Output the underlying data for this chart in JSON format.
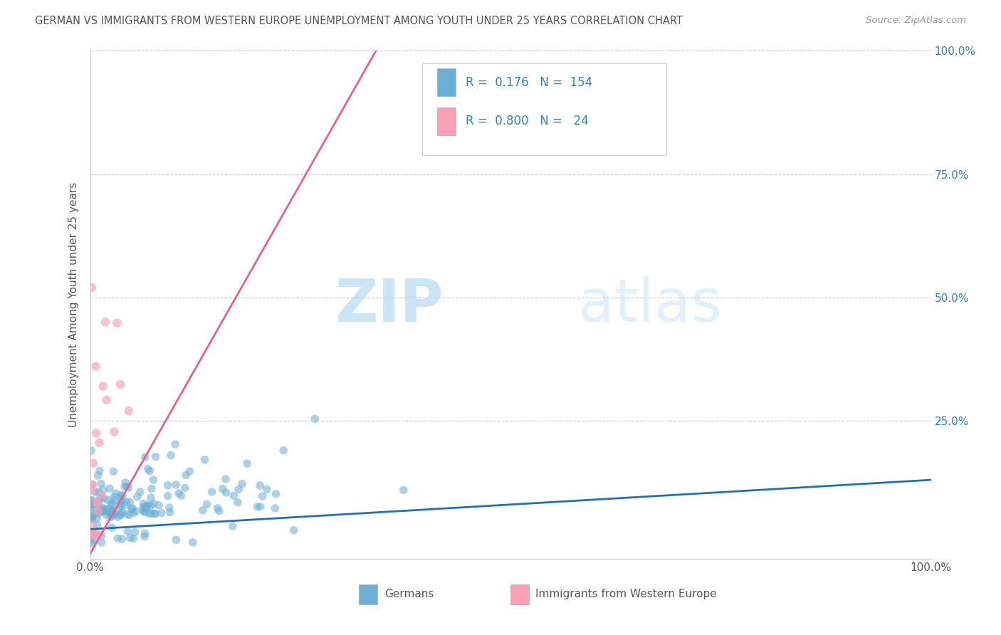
{
  "title": "GERMAN VS IMMIGRANTS FROM WESTERN EUROPE UNEMPLOYMENT AMONG YOUTH UNDER 25 YEARS CORRELATION CHART",
  "source": "Source: ZipAtlas.com",
  "ylabel": "Unemployment Among Youth under 25 years",
  "xlim": [
    0,
    1.0
  ],
  "ylim": [
    -0.03,
    1.0
  ],
  "german_color": "#6baed6",
  "immigrant_color": "#fa9fb5",
  "german_line_color": "#2171b5",
  "immigrant_line_color": "#e8628a",
  "german_R": 0.176,
  "german_N": 154,
  "immigrant_R": 0.8,
  "immigrant_N": 24,
  "watermark_zip": "ZIP",
  "watermark_atlas": "atlas",
  "background_color": "#ffffff",
  "grid_color": "#cccccc",
  "legend_color": "#3182bd",
  "title_color": "#555555",
  "source_color": "#999999"
}
